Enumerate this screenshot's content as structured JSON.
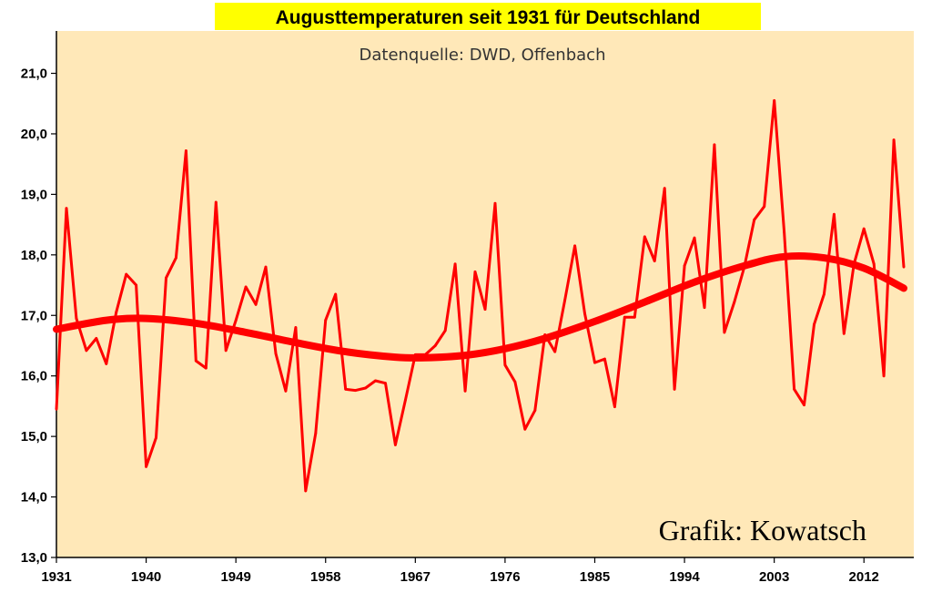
{
  "colors": {
    "plot_background": "#FFE8B8",
    "title_background": "#FFFF00",
    "line": "#FF0000",
    "trend": "#FF0000",
    "axis": "#000000",
    "gridline": "#FFE8B8"
  },
  "chart_data": {
    "type": "line",
    "title": "Augusttemperaturen  seit 1931 für Deutschland",
    "subtitle": "Datenquelle: DWD, Offenbach",
    "credit": "Grafik: Kowatsch",
    "xlabel": "",
    "ylabel": "",
    "xlim": [
      1931,
      2017
    ],
    "ylim": [
      13.0,
      21.7
    ],
    "x_ticks": [
      1931,
      1940,
      1949,
      1958,
      1967,
      1976,
      1985,
      1994,
      2003,
      2012
    ],
    "x_tick_labels": [
      "1931",
      "1940",
      "1949",
      "1958",
      "1967",
      "1976",
      "1985",
      "1994",
      "2003",
      "2012"
    ],
    "y_ticks": [
      13.0,
      14.0,
      15.0,
      16.0,
      17.0,
      18.0,
      19.0,
      20.0,
      21.0
    ],
    "y_tick_labels": [
      "13,0",
      "14,0",
      "15,0",
      "16,0",
      "17,0",
      "18,0",
      "19,0",
      "20,0",
      "21,0"
    ],
    "grid": false,
    "series": [
      {
        "name": "Augusttemperatur",
        "kind": "line",
        "x": [
          1931,
          1932,
          1933,
          1934,
          1935,
          1936,
          1937,
          1938,
          1939,
          1940,
          1941,
          1942,
          1943,
          1944,
          1945,
          1946,
          1947,
          1948,
          1949,
          1950,
          1951,
          1952,
          1953,
          1954,
          1955,
          1956,
          1957,
          1958,
          1959,
          1960,
          1961,
          1962,
          1963,
          1964,
          1965,
          1966,
          1967,
          1968,
          1969,
          1970,
          1971,
          1972,
          1973,
          1974,
          1975,
          1976,
          1977,
          1978,
          1979,
          1980,
          1981,
          1982,
          1983,
          1984,
          1985,
          1986,
          1987,
          1988,
          1989,
          1990,
          1991,
          1992,
          1993,
          1994,
          1995,
          1996,
          1997,
          1998,
          1999,
          2000,
          2001,
          2002,
          2003,
          2004,
          2005,
          2006,
          2007,
          2008,
          2009,
          2010,
          2011,
          2012,
          2013,
          2014,
          2015,
          2016
        ],
        "values": [
          15.45,
          18.77,
          16.95,
          16.42,
          16.62,
          16.2,
          17.05,
          17.68,
          17.5,
          14.5,
          14.98,
          17.62,
          17.95,
          19.72,
          16.25,
          16.13,
          18.87,
          16.42,
          16.92,
          17.47,
          17.18,
          17.8,
          16.37,
          15.75,
          16.8,
          14.1,
          15.05,
          16.92,
          17.35,
          15.78,
          15.76,
          15.8,
          15.92,
          15.88,
          14.86,
          15.6,
          16.35,
          16.35,
          16.5,
          16.75,
          17.85,
          15.75,
          17.72,
          17.1,
          18.85,
          16.18,
          15.9,
          15.12,
          15.43,
          16.68,
          16.4,
          17.25,
          18.15,
          17.03,
          16.22,
          16.28,
          15.49,
          16.97,
          16.97,
          18.3,
          17.9,
          19.1,
          15.78,
          17.82,
          18.28,
          17.13,
          19.82,
          16.72,
          17.22,
          17.8,
          18.58,
          18.8,
          20.55,
          18.38,
          15.78,
          15.52,
          16.85,
          17.35,
          18.67,
          16.7,
          17.85,
          18.43,
          17.85,
          16.0,
          19.9,
          17.8
        ]
      },
      {
        "name": "Trend",
        "kind": "trend",
        "x": [
          1931,
          1936,
          1940,
          1945,
          1950,
          1955,
          1960,
          1965,
          1968,
          1972,
          1976,
          1980,
          1985,
          1990,
          1995,
          2000,
          2004,
          2008,
          2012,
          2016
        ],
        "values": [
          16.77,
          16.92,
          16.95,
          16.87,
          16.72,
          16.55,
          16.4,
          16.31,
          16.3,
          16.34,
          16.45,
          16.62,
          16.9,
          17.22,
          17.55,
          17.82,
          17.97,
          17.95,
          17.78,
          17.45
        ]
      }
    ]
  }
}
